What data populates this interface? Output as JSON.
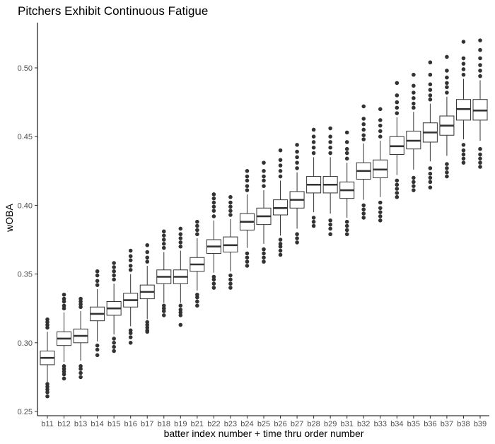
{
  "chart_data": {
    "type": "boxplot",
    "title": "Pitchers Exhibit Continuous Fatigue",
    "xlabel": "batter index number + time thru order number",
    "ylabel": "wOBA",
    "ylim": [
      0.25,
      0.53
    ],
    "yticks": [
      0.25,
      0.3,
      0.35,
      0.4,
      0.45,
      0.5
    ],
    "ytick_labels": [
      "0.25",
      "0.30",
      "0.35",
      "0.40",
      "0.45",
      "0.50"
    ],
    "grid": false,
    "legend": "none",
    "colors": {
      "box_fill": "#ffffff",
      "box_stroke": "#333333",
      "outlier": "#333333",
      "axis": "#000000"
    },
    "boxes": [
      {
        "label": "b11",
        "whisker_low": 0.271,
        "q1": 0.284,
        "median": 0.289,
        "q3": 0.294,
        "whisker_high": 0.308,
        "outliers": [
          0.261,
          0.264,
          0.266,
          0.268,
          0.27,
          0.311,
          0.313,
          0.315,
          0.317
        ]
      },
      {
        "label": "b12",
        "whisker_low": 0.286,
        "q1": 0.298,
        "median": 0.303,
        "q3": 0.308,
        "whisker_high": 0.322,
        "outliers": [
          0.274,
          0.277,
          0.279,
          0.281,
          0.283,
          0.325,
          0.327,
          0.33,
          0.332,
          0.335
        ]
      },
      {
        "label": "b13",
        "whisker_low": 0.287,
        "q1": 0.3,
        "median": 0.305,
        "q3": 0.31,
        "whisker_high": 0.323,
        "outliers": [
          0.275,
          0.278,
          0.281,
          0.283,
          0.326,
          0.328,
          0.33,
          0.332
        ]
      },
      {
        "label": "b14",
        "whisker_low": 0.301,
        "q1": 0.316,
        "median": 0.321,
        "q3": 0.326,
        "whisker_high": 0.339,
        "outliers": [
          0.291,
          0.295,
          0.298,
          0.342,
          0.345,
          0.349,
          0.352
        ]
      },
      {
        "label": "b15",
        "whisker_low": 0.306,
        "q1": 0.32,
        "median": 0.325,
        "q3": 0.33,
        "whisker_high": 0.343,
        "outliers": [
          0.294,
          0.297,
          0.3,
          0.303,
          0.346,
          0.349,
          0.352,
          0.355,
          0.358
        ]
      },
      {
        "label": "b16",
        "whisker_low": 0.312,
        "q1": 0.326,
        "median": 0.331,
        "q3": 0.336,
        "whisker_high": 0.35,
        "outliers": [
          0.3,
          0.304,
          0.307,
          0.309,
          0.353,
          0.356,
          0.36,
          0.363,
          0.367
        ]
      },
      {
        "label": "b17",
        "whisker_low": 0.317,
        "q1": 0.332,
        "median": 0.337,
        "q3": 0.342,
        "whisker_high": 0.356,
        "outliers": [
          0.308,
          0.309,
          0.311,
          0.313,
          0.315,
          0.359,
          0.362,
          0.366,
          0.371
        ]
      },
      {
        "label": "b18",
        "whisker_low": 0.329,
        "q1": 0.343,
        "median": 0.348,
        "q3": 0.353,
        "whisker_high": 0.366,
        "outliers": [
          0.32,
          0.323,
          0.325,
          0.327,
          0.369,
          0.372,
          0.375,
          0.378,
          0.381
        ]
      },
      {
        "label": "b19",
        "whisker_low": 0.329,
        "q1": 0.343,
        "median": 0.348,
        "q3": 0.353,
        "whisker_high": 0.367,
        "outliers": [
          0.313,
          0.32,
          0.322,
          0.324,
          0.327,
          0.37,
          0.373,
          0.376,
          0.379,
          0.383
        ]
      },
      {
        "label": "b21",
        "whisker_low": 0.338,
        "q1": 0.352,
        "median": 0.357,
        "q3": 0.362,
        "whisker_high": 0.376,
        "outliers": [
          0.327,
          0.33,
          0.333,
          0.335,
          0.379,
          0.382,
          0.385,
          0.388
        ]
      },
      {
        "label": "b22",
        "whisker_low": 0.351,
        "q1": 0.365,
        "median": 0.37,
        "q3": 0.375,
        "whisker_high": 0.389,
        "outliers": [
          0.34,
          0.343,
          0.346,
          0.348,
          0.392,
          0.396,
          0.399,
          0.402,
          0.405,
          0.408
        ]
      },
      {
        "label": "b23",
        "whisker_low": 0.352,
        "q1": 0.366,
        "median": 0.371,
        "q3": 0.377,
        "whisker_high": 0.39,
        "outliers": [
          0.34,
          0.343,
          0.346,
          0.349,
          0.393,
          0.396,
          0.399,
          0.402,
          0.406
        ]
      },
      {
        "label": "b24",
        "whisker_low": 0.369,
        "q1": 0.382,
        "median": 0.388,
        "q3": 0.394,
        "whisker_high": 0.408,
        "outliers": [
          0.356,
          0.359,
          0.362,
          0.365,
          0.411,
          0.414,
          0.418,
          0.421,
          0.425
        ]
      },
      {
        "label": "b25",
        "whisker_low": 0.372,
        "q1": 0.386,
        "median": 0.392,
        "q3": 0.398,
        "whisker_high": 0.411,
        "outliers": [
          0.359,
          0.362,
          0.365,
          0.368,
          0.414,
          0.418,
          0.421,
          0.425,
          0.431
        ]
      },
      {
        "label": "b26",
        "whisker_low": 0.378,
        "q1": 0.393,
        "median": 0.398,
        "q3": 0.404,
        "whisker_high": 0.418,
        "outliers": [
          0.364,
          0.367,
          0.37,
          0.372,
          0.375,
          0.421,
          0.425,
          0.429,
          0.433,
          0.44
        ]
      },
      {
        "label": "b27",
        "whisker_low": 0.383,
        "q1": 0.398,
        "median": 0.404,
        "q3": 0.41,
        "whisker_high": 0.424,
        "outliers": [
          0.373,
          0.376,
          0.379,
          0.427,
          0.431,
          0.435,
          0.439,
          0.444
        ]
      },
      {
        "label": "b28",
        "whisker_low": 0.395,
        "q1": 0.409,
        "median": 0.415,
        "q3": 0.421,
        "whisker_high": 0.435,
        "outliers": [
          0.385,
          0.388,
          0.391,
          0.438,
          0.442,
          0.446,
          0.45,
          0.455
        ]
      },
      {
        "label": "b29",
        "whisker_low": 0.394,
        "q1": 0.409,
        "median": 0.415,
        "q3": 0.421,
        "whisker_high": 0.435,
        "outliers": [
          0.379,
          0.383,
          0.386,
          0.389,
          0.438,
          0.442,
          0.446,
          0.45,
          0.456
        ]
      },
      {
        "label": "b31",
        "whisker_low": 0.391,
        "q1": 0.405,
        "median": 0.411,
        "q3": 0.417,
        "whisker_high": 0.431,
        "outliers": [
          0.379,
          0.382,
          0.385,
          0.388,
          0.434,
          0.438,
          0.441,
          0.446,
          0.453
        ]
      },
      {
        "label": "b32",
        "whisker_low": 0.404,
        "q1": 0.419,
        "median": 0.425,
        "q3": 0.431,
        "whisker_high": 0.445,
        "outliers": [
          0.391,
          0.394,
          0.397,
          0.4,
          0.448,
          0.451,
          0.455,
          0.459,
          0.463,
          0.472
        ]
      },
      {
        "label": "b33",
        "whisker_low": 0.406,
        "q1": 0.42,
        "median": 0.426,
        "q3": 0.433,
        "whisker_high": 0.447,
        "outliers": [
          0.389,
          0.392,
          0.395,
          0.398,
          0.402,
          0.45,
          0.454,
          0.458,
          0.462,
          0.47
        ]
      },
      {
        "label": "b34",
        "whisker_low": 0.422,
        "q1": 0.437,
        "median": 0.443,
        "q3": 0.45,
        "whisker_high": 0.464,
        "outliers": [
          0.406,
          0.409,
          0.412,
          0.415,
          0.418,
          0.467,
          0.471,
          0.475,
          0.48,
          0.489
        ]
      },
      {
        "label": "b35",
        "whisker_low": 0.426,
        "q1": 0.441,
        "median": 0.447,
        "q3": 0.454,
        "whisker_high": 0.468,
        "outliers": [
          0.411,
          0.414,
          0.417,
          0.42,
          0.471,
          0.474,
          0.478,
          0.482,
          0.487,
          0.495
        ]
      },
      {
        "label": "b36",
        "whisker_low": 0.432,
        "q1": 0.446,
        "median": 0.453,
        "q3": 0.46,
        "whisker_high": 0.474,
        "outliers": [
          0.413,
          0.417,
          0.42,
          0.423,
          0.427,
          0.477,
          0.48,
          0.484,
          0.488,
          0.495,
          0.504
        ]
      },
      {
        "label": "b37",
        "whisker_low": 0.436,
        "q1": 0.451,
        "median": 0.458,
        "q3": 0.465,
        "whisker_high": 0.479,
        "outliers": [
          0.421,
          0.424,
          0.427,
          0.43,
          0.482,
          0.486,
          0.489,
          0.493,
          0.498,
          0.508
        ]
      },
      {
        "label": "b38",
        "whisker_low": 0.448,
        "q1": 0.462,
        "median": 0.47,
        "q3": 0.477,
        "whisker_high": 0.492,
        "outliers": [
          0.431,
          0.434,
          0.437,
          0.44,
          0.444,
          0.495,
          0.499,
          0.503,
          0.507,
          0.519
        ]
      },
      {
        "label": "b39",
        "whisker_low": 0.447,
        "q1": 0.462,
        "median": 0.469,
        "q3": 0.477,
        "whisker_high": 0.491,
        "outliers": [
          0.428,
          0.431,
          0.434,
          0.437,
          0.441,
          0.494,
          0.498,
          0.502,
          0.507,
          0.513,
          0.52
        ]
      }
    ]
  }
}
